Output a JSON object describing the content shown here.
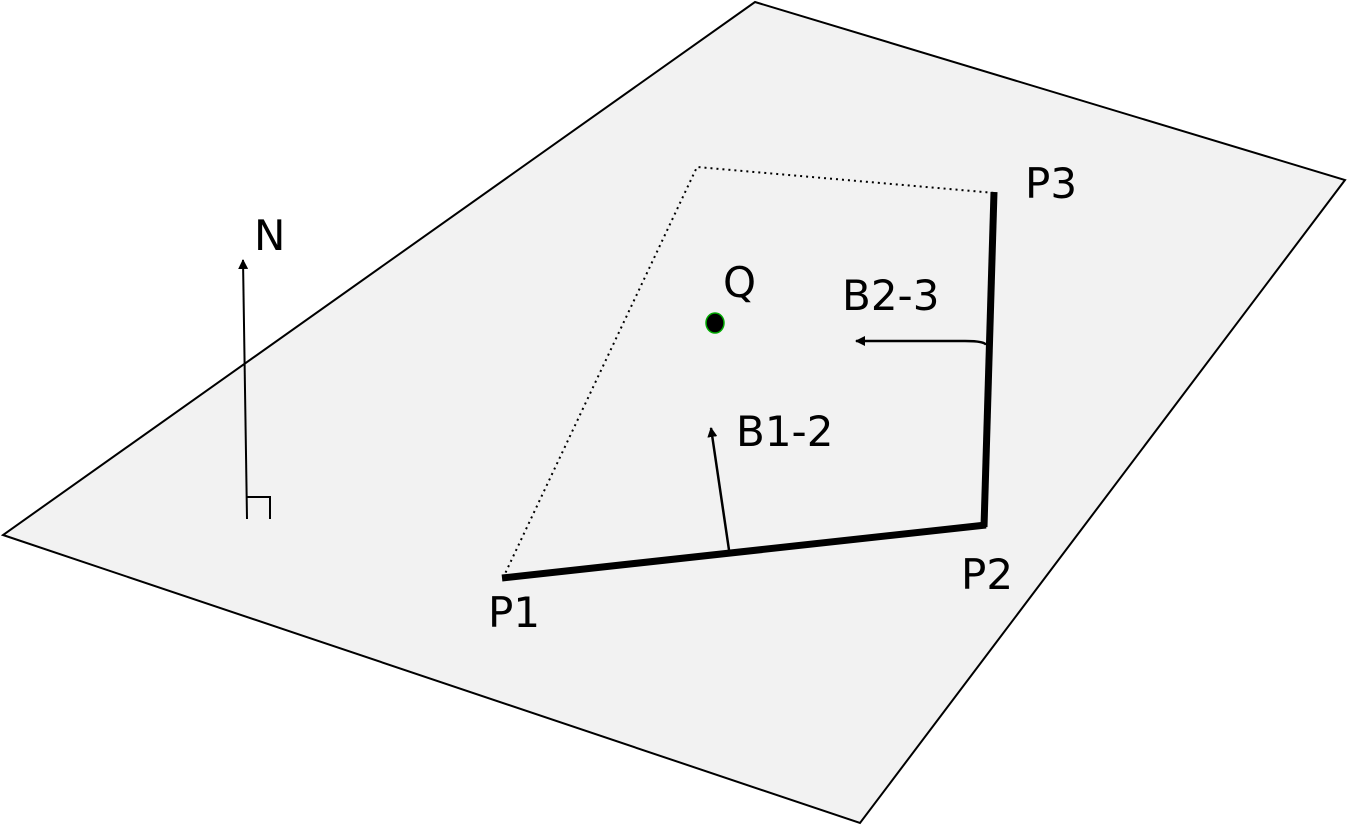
{
  "labels": {
    "north": "N",
    "query_point": "Q",
    "p1": "P1",
    "p2": "P2",
    "p3": "P3",
    "boundary_1_2": "B1-2",
    "boundary_2_3": "B2-3"
  },
  "colors": {
    "plane_fill": "#f2f2f2",
    "stroke": "#000000",
    "point_fill": "#000000",
    "point_outline": "#00aa00"
  },
  "icons": {
    "north_arrow": "north-arrow-icon",
    "normal_arrow": "arrow-icon"
  }
}
